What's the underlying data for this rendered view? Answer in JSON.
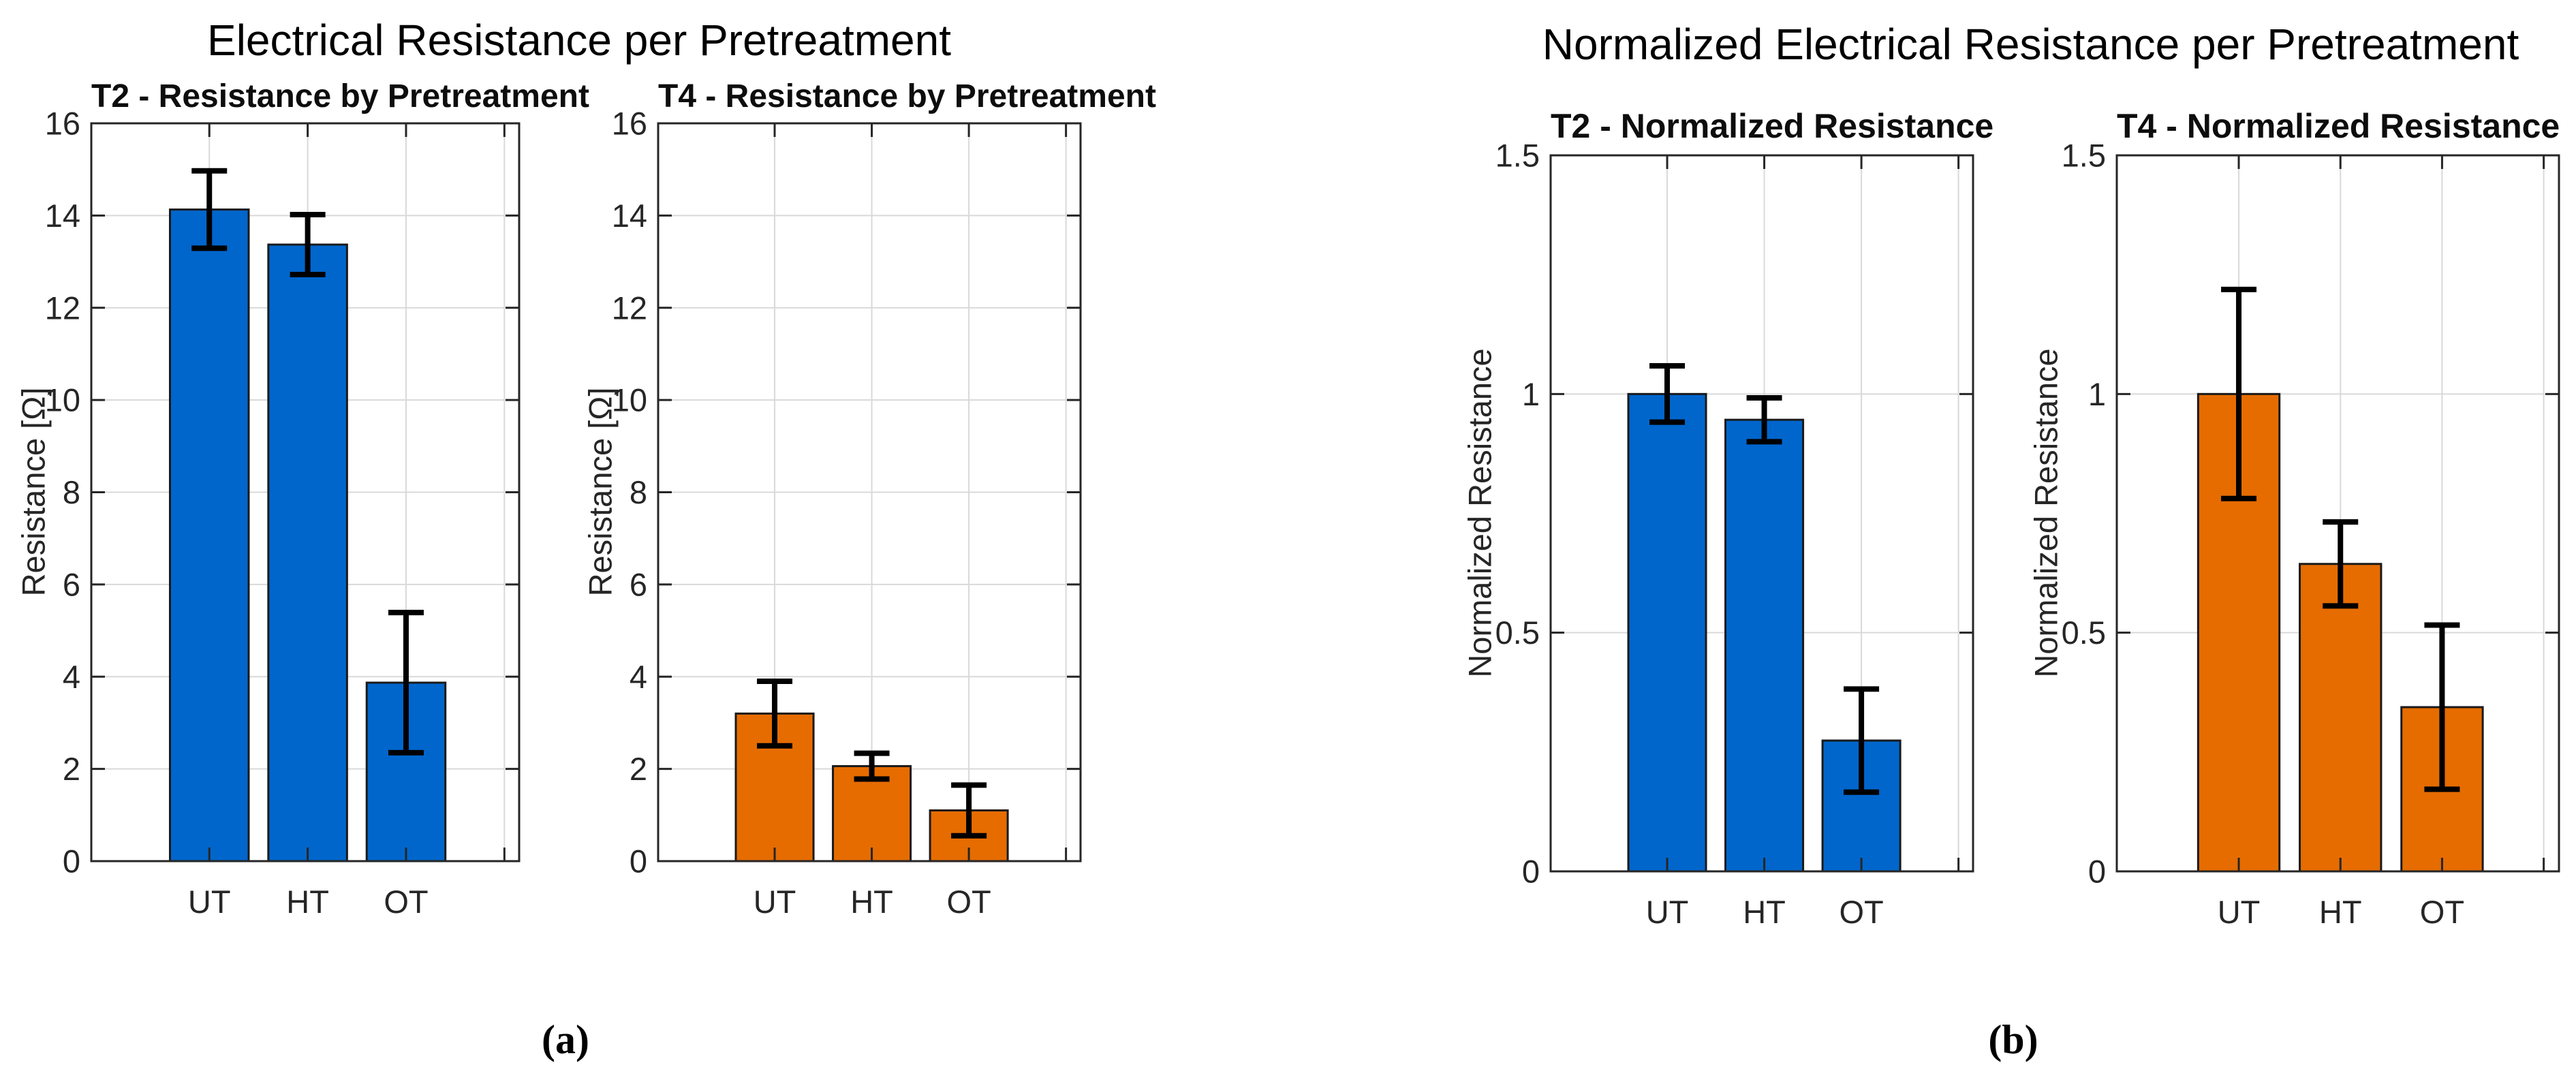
{
  "figure_a": {
    "title": "Electrical Resistance per Pretreatment",
    "caption": "(a)"
  },
  "figure_b": {
    "title": "Normalized Electrical Resistance per Pretreatment",
    "caption": "(b)"
  },
  "colors": {
    "blue_bar": "#0066CC",
    "orange_bar": "#E66C00",
    "bar_edge": "#1a1a1a",
    "error_bar": "#000000",
    "grid_line": "#d9d9d9",
    "axis_line": "#262626",
    "tick_label": "#262626"
  },
  "chart_data": [
    {
      "id": "t2-resistance",
      "type": "bar",
      "title": "T2 - Resistance by Pretreatment",
      "ylabel": "Resistance [Ω]",
      "categories": [
        "UT",
        "HT",
        "OT"
      ],
      "values": [
        14.13,
        13.37,
        3.87
      ],
      "errors": [
        0.84,
        0.65,
        1.52
      ],
      "bar_color": "#0066CC",
      "ylim": [
        0,
        16
      ],
      "yticks": [
        0,
        2,
        4,
        6,
        8,
        10,
        12,
        14,
        16
      ],
      "grid": true,
      "legend": "none"
    },
    {
      "id": "t4-resistance",
      "type": "bar",
      "title": "T4 - Resistance by Pretreatment",
      "ylabel": "Resistance [Ω]",
      "categories": [
        "UT",
        "HT",
        "OT"
      ],
      "values": [
        3.2,
        2.06,
        1.1
      ],
      "errors": [
        0.7,
        0.28,
        0.55
      ],
      "bar_color": "#E66C00",
      "ylim": [
        0,
        16
      ],
      "yticks": [
        0,
        2,
        4,
        6,
        8,
        10,
        12,
        14,
        16
      ],
      "grid": true,
      "legend": "none"
    },
    {
      "id": "t2-normalized",
      "type": "bar",
      "title": "T2 - Normalized Resistance",
      "ylabel": "Normalized Resistance",
      "categories": [
        "UT",
        "HT",
        "OT"
      ],
      "values": [
        1.0,
        0.946,
        0.274
      ],
      "errors": [
        0.059,
        0.046,
        0.108
      ],
      "bar_color": "#0066CC",
      "ylim": [
        0,
        1.5
      ],
      "yticks": [
        0,
        0.5,
        1,
        1.5
      ],
      "grid": true,
      "legend": "none"
    },
    {
      "id": "t4-normalized",
      "type": "bar",
      "title": "T4 - Normalized Resistance",
      "ylabel": "Normalized Resistance",
      "categories": [
        "UT",
        "HT",
        "OT"
      ],
      "values": [
        1.0,
        0.644,
        0.344
      ],
      "errors": [
        0.219,
        0.088,
        0.172
      ],
      "bar_color": "#E66C00",
      "ylim": [
        0,
        1.5
      ],
      "yticks": [
        0,
        0.5,
        1,
        1.5
      ],
      "grid": true,
      "legend": "none"
    }
  ]
}
